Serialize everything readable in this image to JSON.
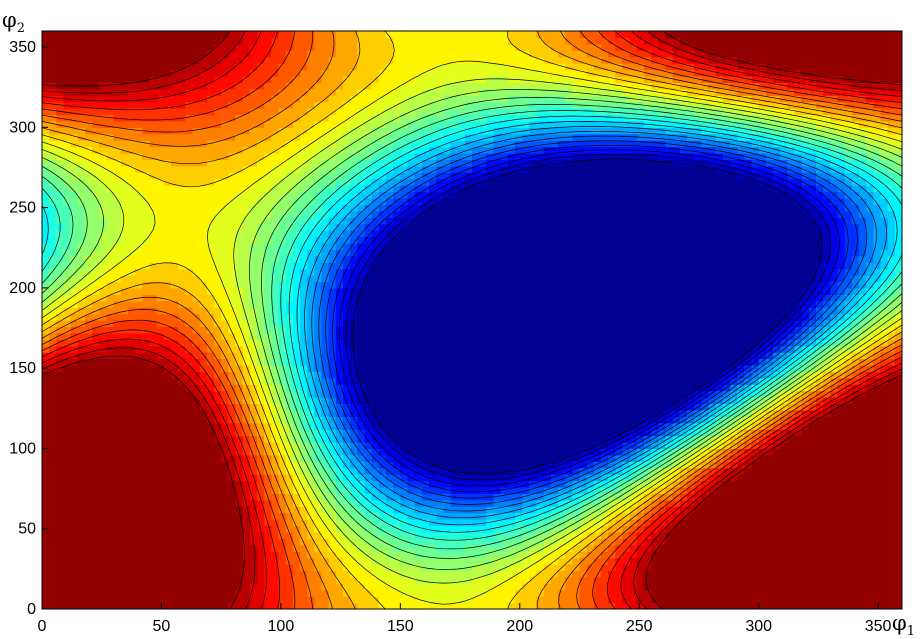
{
  "chart_data": {
    "type": "contour",
    "title": "",
    "xlabel": "φ",
    "xlabel_sub": "1",
    "ylabel": "φ",
    "ylabel_sub": "2",
    "xlim": [
      0,
      360
    ],
    "ylim": [
      0,
      360
    ],
    "xticks": [
      0,
      50,
      100,
      150,
      200,
      250,
      300,
      350
    ],
    "yticks": [
      0,
      50,
      100,
      150,
      200,
      250,
      300,
      350
    ],
    "grid": false,
    "colormap": "jet",
    "filled": true,
    "contour_lines": "black",
    "features": [
      {
        "kind": "maximum",
        "level": "high",
        "x": 25,
        "y": 25
      },
      {
        "kind": "maximum",
        "level": "high",
        "x": 335,
        "y": 335
      },
      {
        "kind": "minimum",
        "level": "low",
        "x": 40,
        "y": 225
      },
      {
        "kind": "minimum",
        "level": "low",
        "x": 320,
        "y": 125
      },
      {
        "kind": "plateau",
        "level": "middle",
        "x": 180,
        "y": 180
      }
    ]
  },
  "colors": {
    "dark-red": "#800000",
    "red": "#ff1a00",
    "orange": "#ff9900",
    "yellow": "#ffff00",
    "green": "#80ff80",
    "cyan": "#00ffff",
    "blue": "#0040ff",
    "dark-blue": "#000090"
  }
}
